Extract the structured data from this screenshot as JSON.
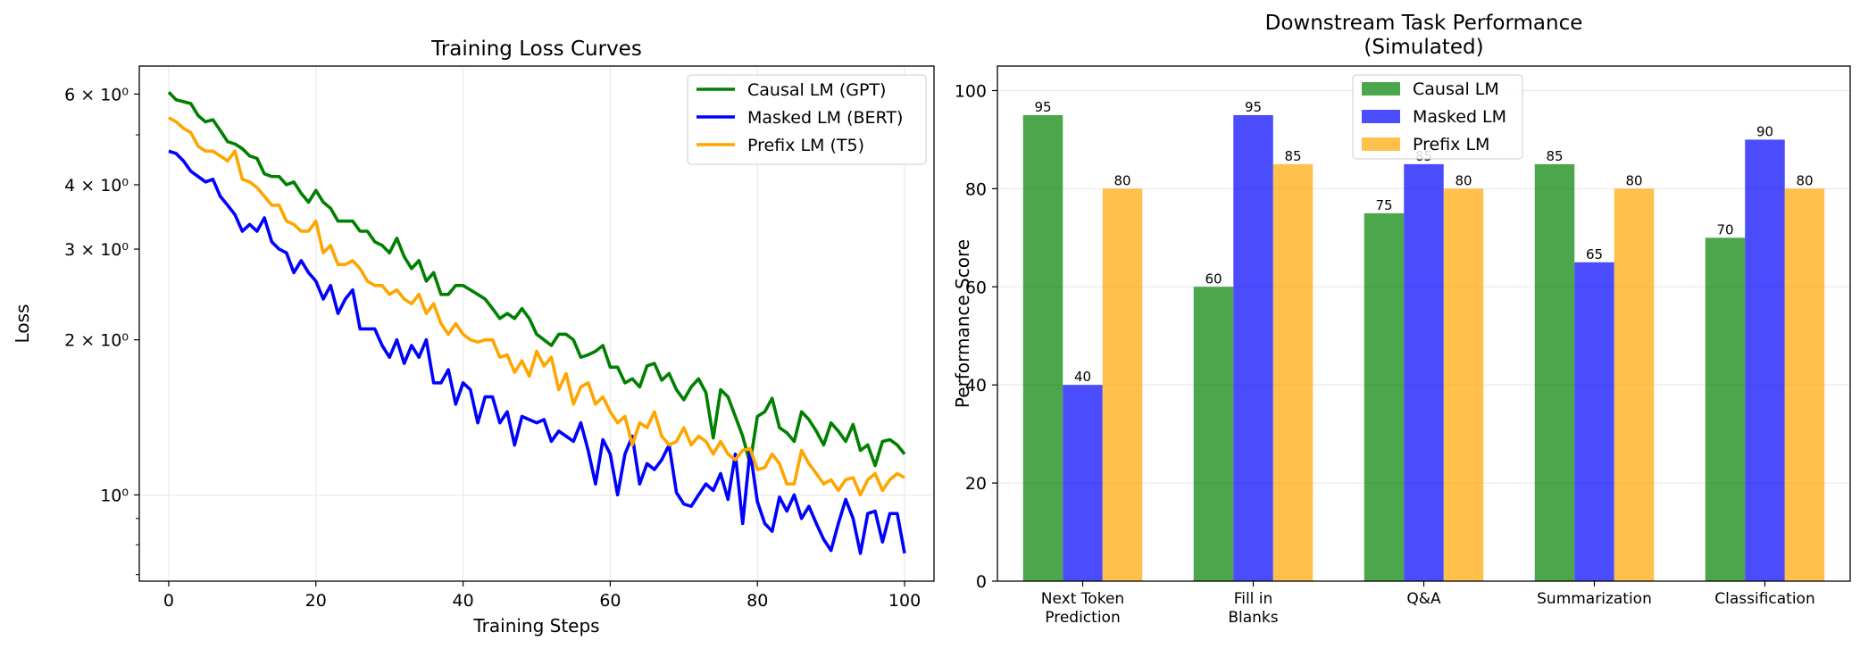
{
  "chart_data": [
    {
      "type": "line",
      "title": "Training Loss Curves",
      "xlabel": "Training Steps",
      "ylabel": "Loss",
      "yscale": "log",
      "xlim": [
        -4,
        104
      ],
      "ylim": [
        0.68,
        6.8
      ],
      "xticks": [
        0,
        20,
        40,
        60,
        80,
        100
      ],
      "yticks": [
        {
          "value": 6,
          "label": "6 × 10⁰"
        },
        {
          "value": 4,
          "label": "4 × 10⁰"
        },
        {
          "value": 3,
          "label": "3 × 10⁰"
        },
        {
          "value": 2,
          "label": "2 × 10⁰"
        },
        {
          "value": 1,
          "label": "10⁰"
        }
      ],
      "grid": true,
      "legend_position": "top-right",
      "series": [
        {
          "name": "Causal LM (GPT)",
          "color": "#008000",
          "values": [
            6.05,
            5.85,
            5.8,
            5.75,
            5.45,
            5.3,
            5.35,
            5.1,
            4.85,
            4.8,
            4.7,
            4.55,
            4.5,
            4.2,
            4.15,
            4.15,
            4.0,
            4.05,
            3.85,
            3.7,
            3.9,
            3.7,
            3.6,
            3.4,
            3.4,
            3.4,
            3.25,
            3.25,
            3.1,
            3.05,
            2.95,
            3.15,
            2.9,
            2.75,
            2.85,
            2.6,
            2.7,
            2.45,
            2.45,
            2.55,
            2.55,
            2.5,
            2.45,
            2.4,
            2.3,
            2.2,
            2.25,
            2.2,
            2.3,
            2.2,
            2.05,
            2.0,
            1.95,
            2.05,
            2.05,
            2.0,
            1.85,
            1.87,
            1.9,
            1.95,
            1.77,
            1.77,
            1.65,
            1.68,
            1.62,
            1.78,
            1.8,
            1.67,
            1.72,
            1.6,
            1.53,
            1.62,
            1.68,
            1.58,
            1.29,
            1.6,
            1.55,
            1.42,
            1.3,
            1.15,
            1.42,
            1.45,
            1.54,
            1.35,
            1.32,
            1.27,
            1.45,
            1.4,
            1.33,
            1.25,
            1.38,
            1.33,
            1.27,
            1.37,
            1.22,
            1.25,
            1.14,
            1.27,
            1.28,
            1.25,
            1.2
          ]
        },
        {
          "name": "Masked LM (BERT)",
          "color": "#0000ff",
          "values": [
            4.65,
            4.6,
            4.45,
            4.25,
            4.15,
            4.05,
            4.1,
            3.8,
            3.65,
            3.5,
            3.25,
            3.35,
            3.25,
            3.45,
            3.1,
            3.0,
            2.95,
            2.7,
            2.85,
            2.7,
            2.6,
            2.4,
            2.55,
            2.25,
            2.4,
            2.5,
            2.1,
            2.1,
            2.1,
            1.95,
            1.85,
            2.0,
            1.8,
            1.95,
            1.85,
            2.0,
            1.65,
            1.65,
            1.75,
            1.5,
            1.65,
            1.6,
            1.38,
            1.55,
            1.55,
            1.38,
            1.45,
            1.25,
            1.42,
            1.4,
            1.38,
            1.4,
            1.27,
            1.33,
            1.3,
            1.27,
            1.38,
            1.22,
            1.05,
            1.28,
            1.2,
            1.0,
            1.2,
            1.3,
            1.05,
            1.15,
            1.12,
            1.17,
            1.25,
            1.01,
            0.96,
            0.95,
            1.0,
            1.05,
            1.02,
            1.1,
            0.98,
            1.2,
            0.88,
            1.22,
            0.97,
            0.88,
            0.85,
            0.99,
            0.93,
            1.0,
            0.9,
            0.95,
            0.88,
            0.82,
            0.78,
            0.88,
            0.98,
            0.9,
            0.77,
            0.92,
            0.93,
            0.81,
            0.92,
            0.92,
            0.77
          ]
        },
        {
          "name": "Prefix LM (T5)",
          "color": "#ffa500",
          "values": [
            5.4,
            5.3,
            5.15,
            5.05,
            4.75,
            4.65,
            4.65,
            4.55,
            4.45,
            4.65,
            4.1,
            4.05,
            3.95,
            3.8,
            3.65,
            3.65,
            3.4,
            3.35,
            3.25,
            3.25,
            3.4,
            2.95,
            3.05,
            2.8,
            2.8,
            2.85,
            2.75,
            2.6,
            2.55,
            2.55,
            2.45,
            2.5,
            2.4,
            2.35,
            2.45,
            2.25,
            2.35,
            2.15,
            2.05,
            2.15,
            2.05,
            2.0,
            1.98,
            2.0,
            2.0,
            1.85,
            1.87,
            1.73,
            1.82,
            1.7,
            1.9,
            1.78,
            1.85,
            1.6,
            1.72,
            1.5,
            1.62,
            1.65,
            1.5,
            1.55,
            1.45,
            1.38,
            1.42,
            1.25,
            1.38,
            1.35,
            1.45,
            1.3,
            1.25,
            1.27,
            1.35,
            1.25,
            1.3,
            1.27,
            1.2,
            1.27,
            1.2,
            1.17,
            1.22,
            1.23,
            1.12,
            1.13,
            1.2,
            1.15,
            1.05,
            1.05,
            1.22,
            1.15,
            1.1,
            1.05,
            1.07,
            1.02,
            1.07,
            1.08,
            1.0,
            1.07,
            1.1,
            1.02,
            1.07,
            1.1,
            1.08
          ]
        }
      ]
    },
    {
      "type": "bar",
      "title": "Downstream Task Performance\n(Simulated)",
      "xlabel": "",
      "ylabel": "Performance Score",
      "ylim": [
        0,
        105
      ],
      "yticks": [
        0,
        20,
        40,
        60,
        80,
        100
      ],
      "grid": true,
      "legend_position": "top-center",
      "categories": [
        "Next Token\nPrediction",
        "Fill in\nBlanks",
        "Q&A",
        "Summarization",
        "Classification"
      ],
      "series": [
        {
          "name": "Causal LM",
          "color": "#008000",
          "alpha": 0.7,
          "values": [
            95,
            60,
            75,
            85,
            70
          ]
        },
        {
          "name": "Masked LM",
          "color": "#0000ff",
          "alpha": 0.7,
          "values": [
            40,
            95,
            85,
            65,
            90
          ]
        },
        {
          "name": "Prefix LM",
          "color": "#ffa500",
          "alpha": 0.7,
          "values": [
            80,
            85,
            80,
            80,
            80
          ]
        }
      ]
    }
  ]
}
